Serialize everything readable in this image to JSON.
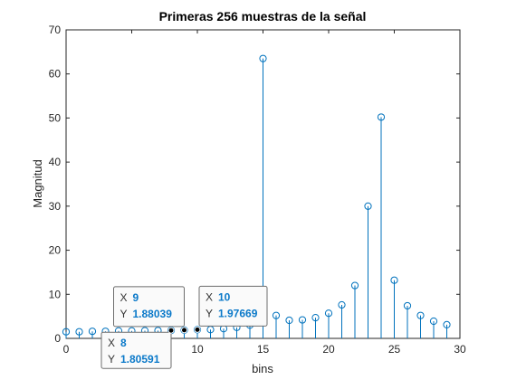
{
  "chart_data": {
    "type": "stem",
    "title": "Primeras 256 muestras de la señal",
    "xlabel": "bins",
    "ylabel": "Magnitud",
    "xlim": [
      0,
      30
    ],
    "ylim": [
      0,
      70
    ],
    "xticks": [
      0,
      5,
      10,
      15,
      20,
      25,
      30
    ],
    "yticks": [
      0,
      10,
      20,
      30,
      40,
      50,
      60,
      70
    ],
    "grid": false,
    "series": [
      {
        "color": "#0072bd",
        "marker": "circle",
        "x": [
          0,
          1,
          2,
          3,
          4,
          5,
          6,
          7,
          8,
          9,
          10,
          11,
          12,
          13,
          14,
          15,
          16,
          17,
          18,
          19,
          20,
          21,
          22,
          23,
          24,
          25,
          26,
          27,
          28,
          29
        ],
        "y": [
          1.5,
          1.5,
          1.6,
          1.6,
          1.7,
          1.7,
          1.75,
          1.78,
          1.80591,
          1.88039,
          1.97669,
          2.0,
          2.2,
          2.5,
          3.0,
          63.5,
          5.2,
          4.1,
          4.2,
          4.7,
          5.7,
          7.6,
          12.0,
          30.0,
          50.2,
          13.2,
          7.4,
          5.2,
          3.9,
          3.1
        ]
      }
    ],
    "datatips": [
      {
        "x_label": "X",
        "x_value": "8",
        "y_label": "Y",
        "y_value": "1.80591",
        "px": 8,
        "py": 1.80591
      },
      {
        "x_label": "X",
        "x_value": "9",
        "y_label": "Y",
        "y_value": "1.88039",
        "px": 9,
        "py": 1.88039
      },
      {
        "x_label": "X",
        "x_value": "10",
        "y_label": "Y",
        "y_value": "1.97669",
        "px": 10,
        "py": 1.97669
      }
    ]
  }
}
